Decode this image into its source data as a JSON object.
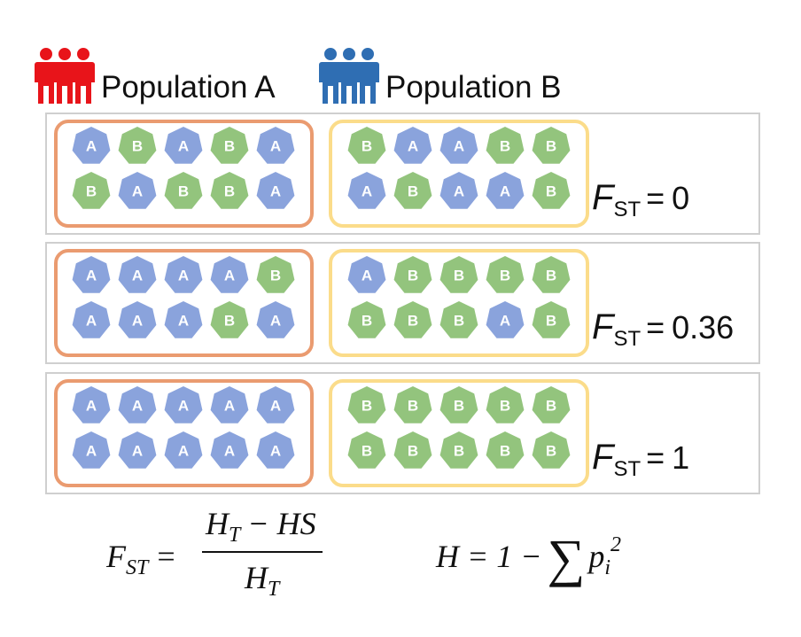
{
  "legend": [
    {
      "label": "Population A"
    },
    {
      "label": "Population B"
    }
  ],
  "rows": [
    {
      "population_a": [
        [
          "A",
          "B",
          "A",
          "B",
          "A"
        ],
        [
          "B",
          "A",
          "B",
          "B",
          "A"
        ]
      ],
      "population_b": [
        [
          "B",
          "A",
          "A",
          "B",
          "B"
        ],
        [
          "A",
          "B",
          "A",
          "A",
          "B"
        ]
      ],
      "fst": {
        "symbol": "F",
        "subscript": "ST",
        "relation": "=",
        "value": 0
      }
    },
    {
      "population_a": [
        [
          "A",
          "A",
          "A",
          "A",
          "B"
        ],
        [
          "A",
          "A",
          "A",
          "B",
          "A"
        ]
      ],
      "population_b": [
        [
          "A",
          "B",
          "B",
          "B",
          "B"
        ],
        [
          "B",
          "B",
          "B",
          "A",
          "B"
        ]
      ],
      "fst": {
        "symbol": "F",
        "subscript": "ST",
        "relation": "=",
        "value": 0.36
      }
    },
    {
      "population_a": [
        [
          "A",
          "A",
          "A",
          "A",
          "A"
        ],
        [
          "A",
          "A",
          "A",
          "A",
          "A"
        ]
      ],
      "population_b": [
        [
          "B",
          "B",
          "B",
          "B",
          "B"
        ],
        [
          "B",
          "B",
          "B",
          "B",
          "B"
        ]
      ],
      "fst": {
        "symbol": "F",
        "subscript": "ST",
        "relation": "=",
        "value": 1
      }
    }
  ],
  "formulas": {
    "fst": {
      "lhs": "F",
      "lhs_sub": "ST",
      "eq": "=",
      "num_main": "H",
      "num_sub": "T",
      "num_rest": "− HS",
      "den_main": "H",
      "den_sub": "T"
    },
    "heterozygosity": {
      "lhs": "H = 1 −",
      "sum": "∑",
      "p": "p",
      "sub": "i",
      "sup": "2"
    }
  }
}
